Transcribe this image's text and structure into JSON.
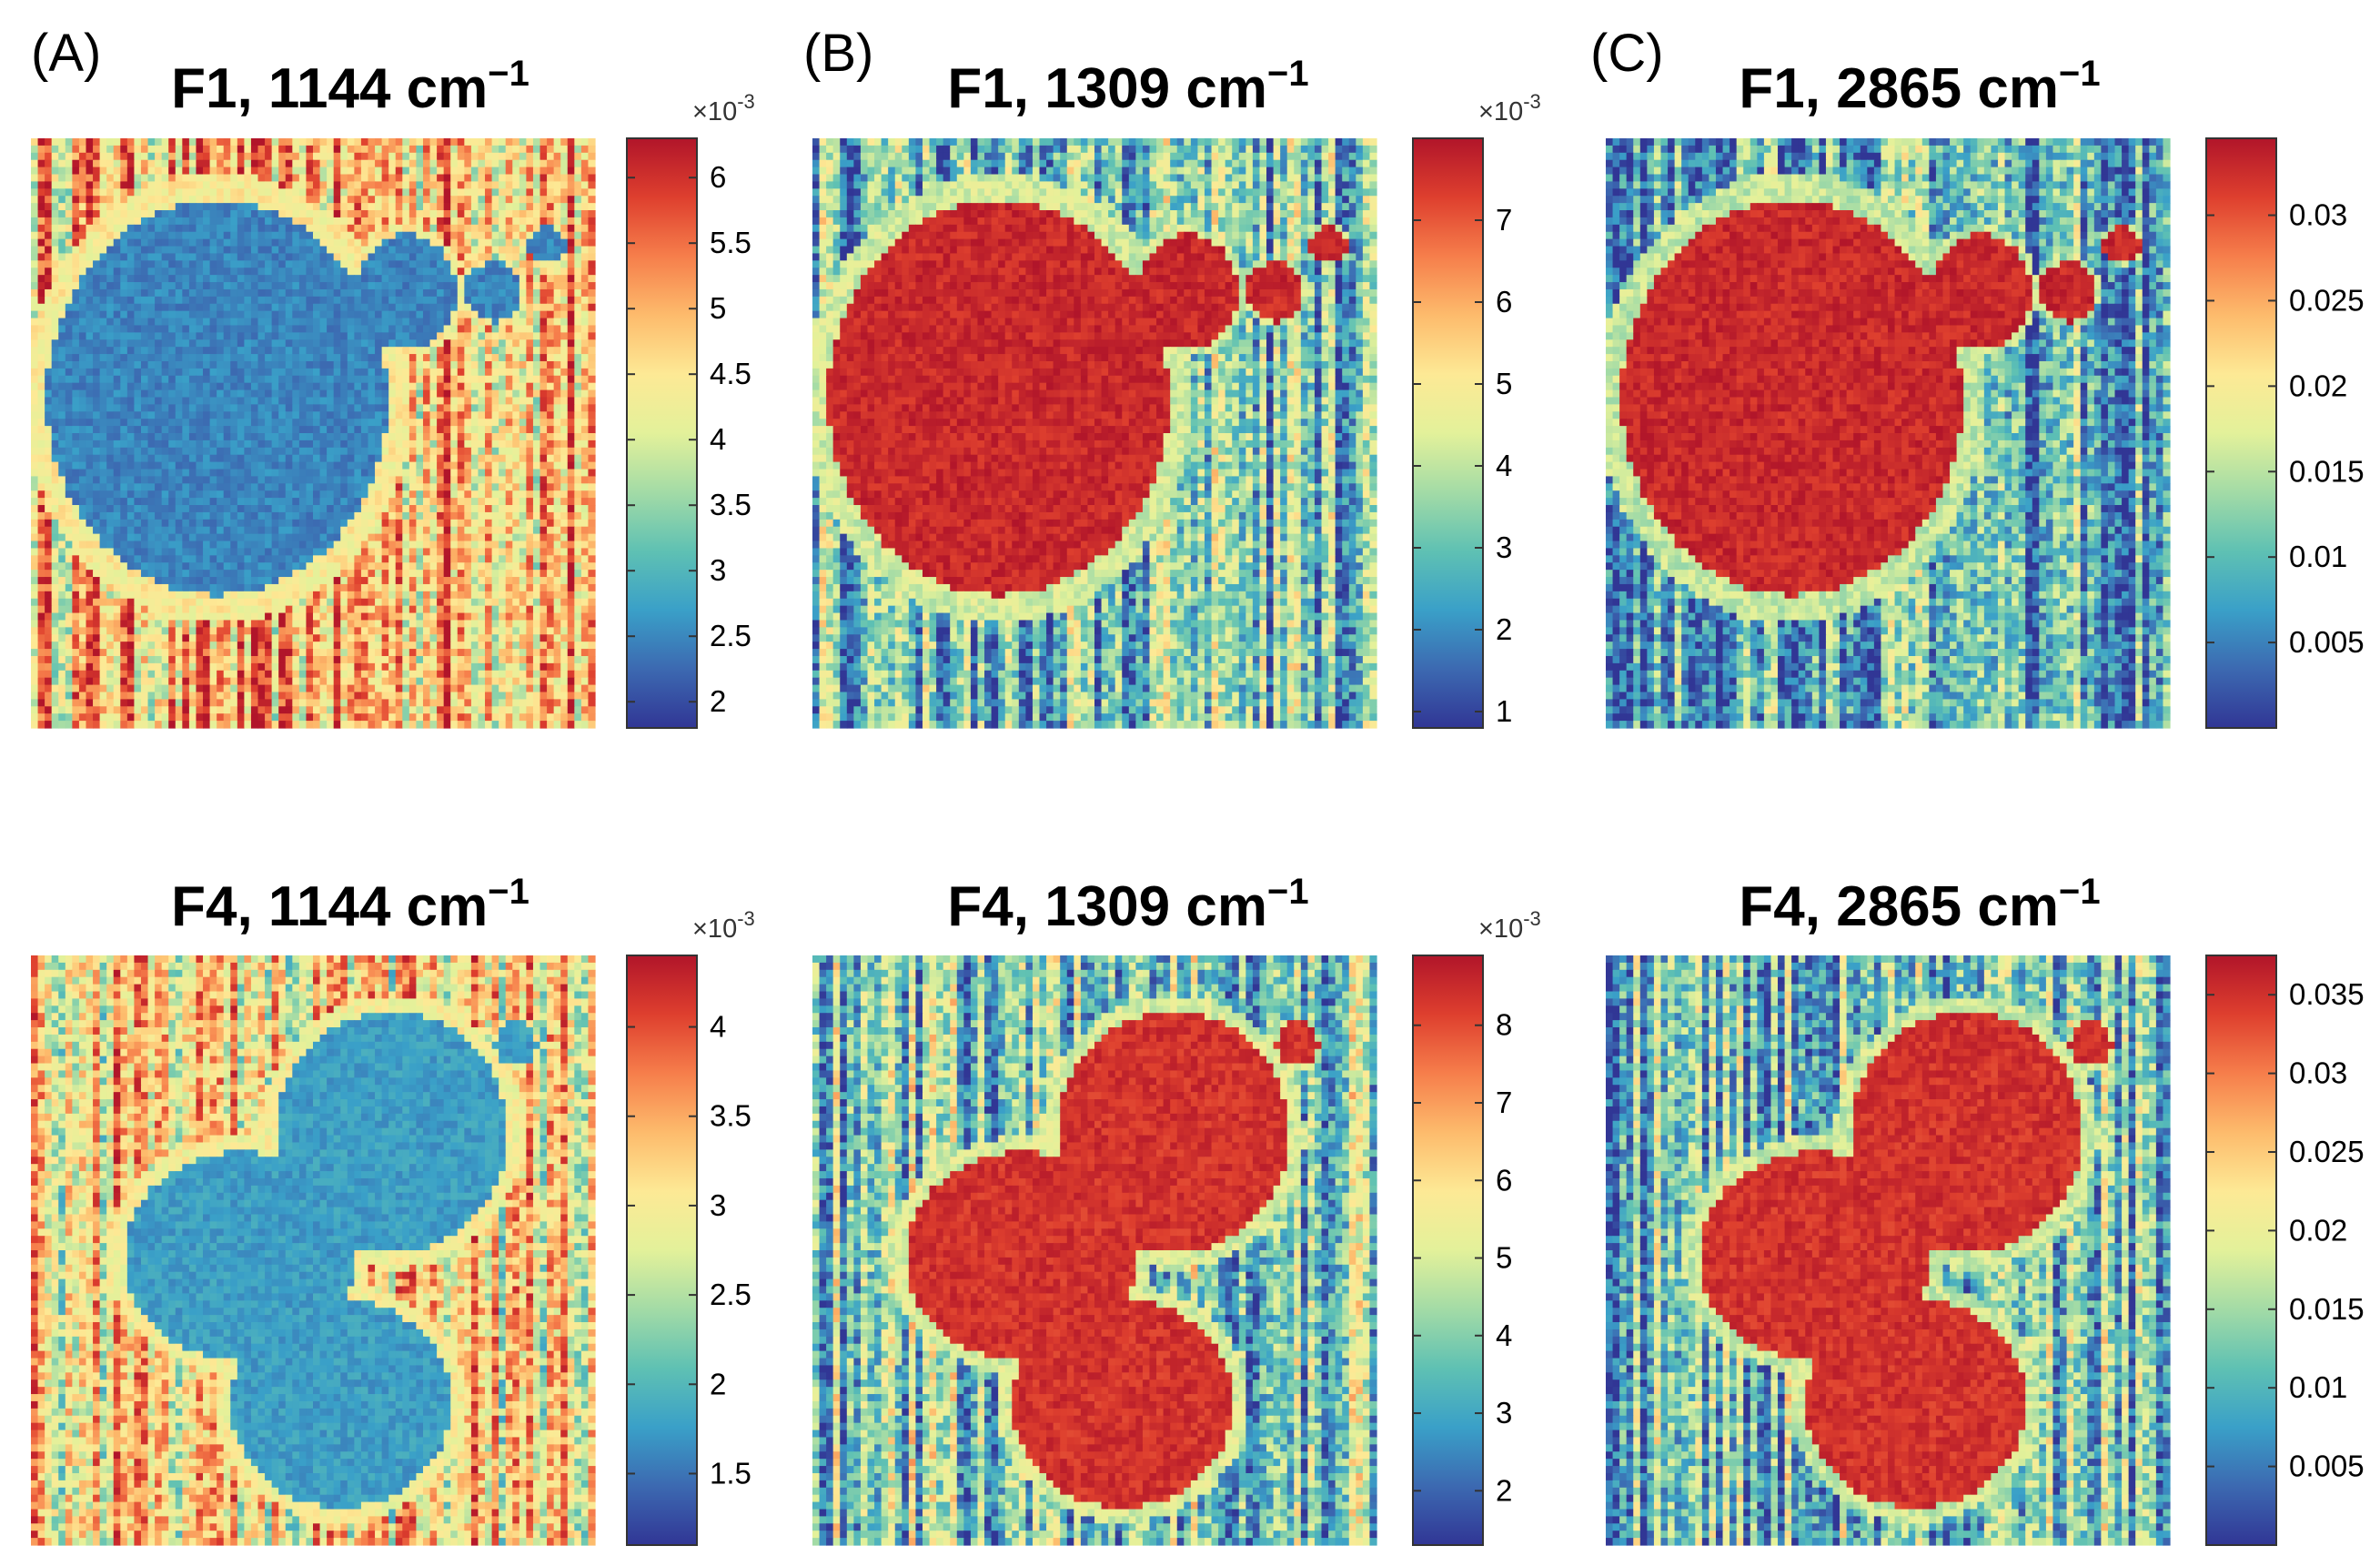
{
  "colormap": [
    "#313695",
    "#3c69b1",
    "#3aa0c8",
    "#5fc1b3",
    "#a3dba6",
    "#e3f19a",
    "#fde995",
    "#fdbb6c",
    "#f67e4b",
    "#de3f2e",
    "#b1152a"
  ],
  "chart_data": [
    {
      "type": "heatmap",
      "panel_label": "(A)",
      "title": "F1, 1144 cm",
      "title_sup": "−1",
      "colorbar": {
        "range": [
          1.8,
          6.3
        ],
        "ticks": [
          "6",
          "5.5",
          "5",
          "4.5",
          "4",
          "3.5",
          "3",
          "2.5",
          "2"
        ],
        "tick_values": [
          6,
          5.5,
          5,
          4.5,
          4,
          3.5,
          3,
          2.5,
          2
        ],
        "exponent_label": "×10",
        "exponent_sup": "-3"
      },
      "pattern": {
        "row": 1,
        "inside": 0.15,
        "background": 0.7
      }
    },
    {
      "type": "heatmap",
      "panel_label": "(B)",
      "title": "F1, 1309 cm",
      "title_sup": "−1",
      "colorbar": {
        "range": [
          0.8,
          8.0
        ],
        "ticks": [
          "7",
          "6",
          "5",
          "4",
          "3",
          "2",
          "1"
        ],
        "tick_values": [
          7,
          6,
          5,
          4,
          3,
          2,
          1
        ],
        "exponent_label": "×10",
        "exponent_sup": "-3"
      },
      "pattern": {
        "row": 1,
        "inside": 0.95,
        "background": 0.3
      }
    },
    {
      "type": "heatmap",
      "panel_label": "(C)",
      "title": "F1, 2865 cm",
      "title_sup": "−1",
      "colorbar": {
        "range": [
          0.0,
          0.0345
        ],
        "ticks": [
          "0.03",
          "0.025",
          "0.02",
          "0.015",
          "0.01",
          "0.005"
        ],
        "tick_values": [
          0.03,
          0.025,
          0.02,
          0.015,
          0.01,
          0.005
        ],
        "exponent_label": "",
        "exponent_sup": ""
      },
      "pattern": {
        "row": 1,
        "inside": 0.95,
        "background": 0.25
      }
    },
    {
      "type": "heatmap",
      "panel_label": "",
      "title": "F4, 1144 cm",
      "title_sup": "−1",
      "colorbar": {
        "range": [
          1.1,
          4.4
        ],
        "ticks": [
          "4",
          "3.5",
          "3",
          "2.5",
          "2",
          "1.5"
        ],
        "tick_values": [
          4,
          3.5,
          3,
          2.5,
          2,
          1.5
        ],
        "exponent_label": "×10",
        "exponent_sup": "-3"
      },
      "pattern": {
        "row": 2,
        "inside": 0.2,
        "background": 0.62
      }
    },
    {
      "type": "heatmap",
      "panel_label": "",
      "title": "F4, 1309 cm",
      "title_sup": "−1",
      "colorbar": {
        "range": [
          1.3,
          8.9
        ],
        "ticks": [
          "8",
          "7",
          "6",
          "5",
          "4",
          "3",
          "2"
        ],
        "tick_values": [
          8,
          7,
          6,
          5,
          4,
          3,
          2
        ],
        "exponent_label": "×10",
        "exponent_sup": "-3"
      },
      "pattern": {
        "row": 2,
        "inside": 0.93,
        "background": 0.35
      }
    },
    {
      "type": "heatmap",
      "panel_label": "",
      "title": "F4, 2865 cm",
      "title_sup": "−1",
      "colorbar": {
        "range": [
          0.0,
          0.0375
        ],
        "ticks": [
          "0.035",
          "0.03",
          "0.025",
          "0.02",
          "0.015",
          "0.01",
          "0.005"
        ],
        "tick_values": [
          0.035,
          0.03,
          0.025,
          0.02,
          0.015,
          0.01,
          0.005
        ],
        "exponent_label": "",
        "exponent_sup": ""
      },
      "pattern": {
        "row": 2,
        "inside": 0.93,
        "background": 0.3
      }
    }
  ]
}
